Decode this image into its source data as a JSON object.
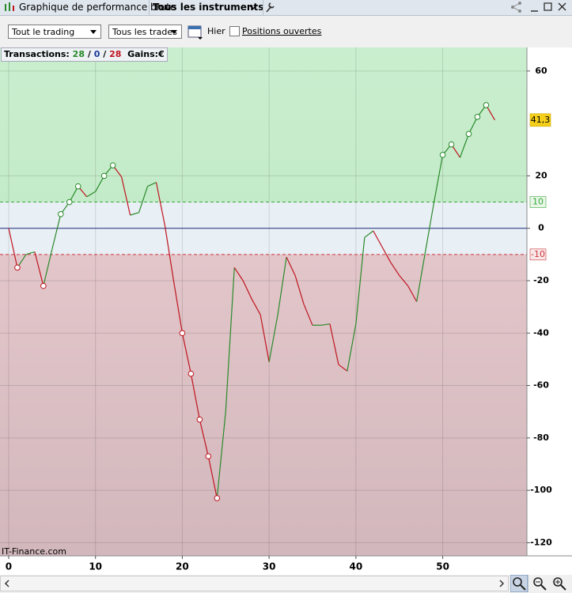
{
  "ui": {
    "window_title": "Graphique de performance brute",
    "instrument_menu": "Tous les instruments",
    "scope_select": "Tout le trading",
    "trades_select": "Tous les trades",
    "date_label": "Hier",
    "open_positions": "Positions ouvertes",
    "transactions_label": "Transactions:",
    "wins": "28",
    "sep1": "/",
    "neutral": "0",
    "sep2": "/",
    "losses": "28",
    "gains_label": "Gains:",
    "currency": "€",
    "watermark": "IT-Finance.com"
  },
  "chart_data": {
    "type": "line",
    "x": [
      0,
      1,
      2,
      3,
      4,
      5,
      6,
      7,
      8,
      9,
      10,
      11,
      12,
      13,
      14,
      15,
      16,
      17,
      18,
      19,
      20,
      21,
      22,
      23,
      24,
      25,
      26,
      27,
      28,
      29,
      30,
      31,
      32,
      33,
      34,
      35,
      36,
      37,
      38,
      39,
      40,
      41,
      42,
      43,
      44,
      45,
      46,
      47,
      48,
      49,
      50,
      51,
      52,
      53,
      54,
      55,
      56
    ],
    "values": [
      0,
      -15,
      -10,
      -9,
      -22,
      -8,
      5.4,
      10,
      16,
      12,
      14,
      20,
      24,
      19.6,
      5,
      6,
      16,
      17.5,
      1,
      -20,
      -40,
      -55.5,
      -73,
      -87,
      -103,
      -70,
      -15,
      -20,
      -27,
      -33,
      -51,
      -33,
      -11,
      -18,
      -29,
      -37,
      -37,
      -36.5,
      -52,
      -54.5,
      -36.5,
      -3.5,
      -1,
      -7,
      -13,
      -18,
      -22,
      -28,
      -9,
      10,
      28,
      32,
      27,
      36,
      42.5,
      47,
      41.3
    ],
    "up_color": "#2a8a2a",
    "down_color": "#c0141e",
    "xlim": [
      -1,
      59.7
    ],
    "ylim": [
      -125,
      69
    ],
    "xticks": [
      0,
      10,
      20,
      30,
      40,
      50
    ],
    "yticks": [
      60,
      20,
      0,
      -20,
      -40,
      -60,
      -80,
      -100,
      -120
    ],
    "thresholds": [
      10,
      -10
    ],
    "last_value": 41.3,
    "last_value_label": "41,3",
    "grid": true
  }
}
